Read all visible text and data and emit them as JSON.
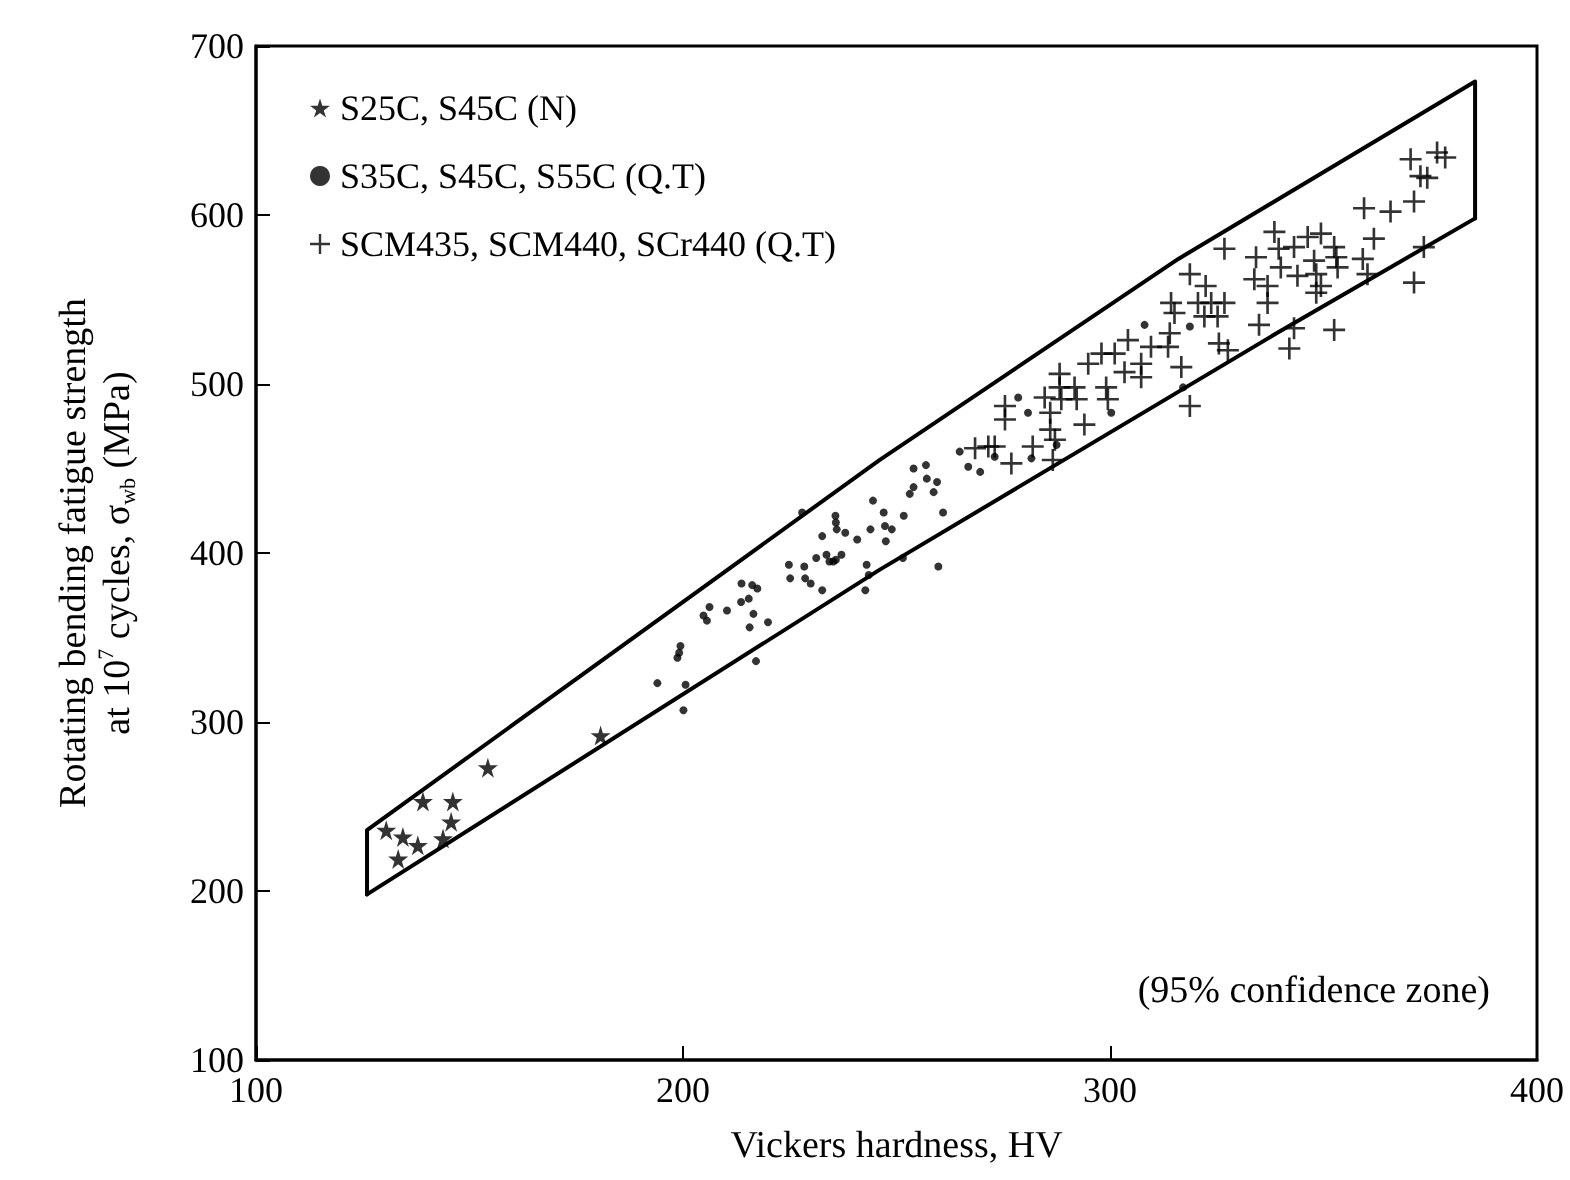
{
  "chart_data": {
    "type": "scatter",
    "xlabel": "Vickers hardness, HV",
    "ylabel": "Rotating bending fatigue strength at 10$^{7}$ cycles, σ$_{wb}$ (MPa)",
    "xlim": [
      100,
      400
    ],
    "xticks": [
      100,
      200,
      300,
      400
    ],
    "ylim": [
      100,
      700
    ],
    "yticks": [
      100,
      200,
      300,
      400,
      500,
      600,
      700
    ],
    "grid": false,
    "legend": "top left",
    "annotations": [
      "(95% confidence zone)"
    ],
    "series": [
      {
        "name": "S25C, S45C (N)",
        "color": "#000000",
        "marker": "star",
        "x": [
          130.5,
          134.4,
          137.9,
          133.3,
          139.1,
          146.1,
          145.7,
          143.8,
          154.3,
          180.7
        ],
        "values": [
          236,
          232,
          227,
          219,
          253,
          253,
          241,
          231,
          273,
          292
        ]
      },
      {
        "name": "S35C, S45C, S55C (Q.T)",
        "color": "#000000",
        "marker": "circle",
        "x": [
          194,
          200.6,
          200.1,
          199.1,
          199.4,
          198.7,
          204.8,
          205.6,
          206.2,
          210.3,
          213.7,
          213.6,
          215.4,
          216.2,
          217.4,
          216.5,
          215.6,
          219.9,
          217.1,
          227.9,
          224.8,
          225.1,
          228.4,
          228.6,
          229.9,
          232.6,
          231.2,
          232.6,
          233.6,
          234.3,
          235.2,
          235.8,
          237.1,
          235.7,
          235.8,
          236,
          238,
          240.8,
          243.9,
          244.5,
          247,
          247.3,
          248.9,
          247.5,
          251.7,
          243,
          243.5,
          242.7,
          251.5,
          259.8,
          260.9,
          253.1,
          254,
          257.1,
          258.7,
          259.5,
          254,
          256.9,
          266.8,
          269.6,
          264.8,
          278.5,
          280.8,
          273,
          281.6,
          287.5,
          300.3,
          308.1,
          318.7,
          317.1
        ],
        "values": [
          323,
          322,
          307,
          341,
          345,
          338,
          363,
          360,
          368,
          366,
          382,
          371,
          373,
          381,
          379,
          364,
          356,
          359,
          336,
          424,
          393,
          385,
          392,
          385,
          382,
          378,
          397,
          410,
          399,
          395,
          395,
          396,
          399,
          422,
          418,
          414,
          412,
          408,
          414,
          431,
          424,
          416,
          414,
          407,
          422,
          393,
          387,
          378,
          397,
          392,
          424,
          435,
          439,
          444,
          436,
          442,
          450,
          452,
          451,
          448,
          460,
          492,
          483,
          457,
          456,
          464,
          483,
          535,
          534,
          498
        ]
      },
      {
        "name": "SCM435, SCM440, SCr440 (Q.T)",
        "color": "#000000",
        "marker": "cross",
        "x": [
          275.4,
          275.4,
          284.7,
          286,
          288.2,
          288.2,
          288.6,
          291.7,
          292.2,
          286,
          287.1,
          286.6,
          294,
          281.9,
          276.9,
          271.5,
          273,
          268.4,
          294.9,
          298,
          301.1,
          299.1,
          299.5,
          304.2,
          303.4,
          307.3,
          307.3,
          309.6,
          313.6,
          314,
          315.1,
          314.3,
          316.7,
          318.7,
          318.7,
          322.4,
          320.6,
          323.7,
          326.8,
          322.1,
          325.2,
          325.5,
          327.6,
          334.9,
          333.8,
          336.9,
          336.9,
          326.8,
          334.2,
          338.5,
          339.5,
          343.1,
          346.3,
          349.4,
          347.8,
          352.5,
          353,
          353.3,
          348.3,
          343.9,
          340,
          349.4,
          348.3,
          343.1,
          342,
          352.5,
          359.2,
          360.3,
          361.8,
          359.5,
          365.7,
          371.2,
          371.2,
          370.4,
          372.7,
          374.3,
          376.6,
          378.5,
          373.5
        ],
        "values": [
          487,
          479,
          492,
          483,
          506,
          498,
          491,
          498,
          491,
          473,
          467,
          455,
          476,
          463,
          453,
          463,
          463,
          462,
          512,
          518,
          518,
          498,
          491,
          526,
          507,
          504,
          512,
          522,
          522,
          530,
          542,
          548,
          510,
          487,
          565,
          558,
          548,
          548,
          548,
          540,
          540,
          524,
          520,
          535,
          562,
          558,
          548,
          580,
          575,
          590,
          580,
          581,
          587,
          589,
          573,
          581,
          575,
          569,
          565,
          564,
          569,
          558,
          554,
          533,
          521,
          532,
          574,
          565,
          586,
          604,
          602,
          608,
          560,
          633,
          623,
          622,
          637,
          634,
          581
        ]
      },
      {
        "type": "line",
        "color": "#000000",
        "marker": "none",
        "x": [
          126,
          126,
          246,
          316,
          385.5,
          385.5
        ],
        "values": [
          198,
          236,
          455,
          574,
          679,
          598
        ]
      },
      {
        "type": "line",
        "color": "#000000",
        "marker": "none",
        "x": [
          126,
          246,
          339,
          385.5
        ],
        "values": [
          198,
          390,
          530,
          598
        ]
      }
    ]
  }
}
